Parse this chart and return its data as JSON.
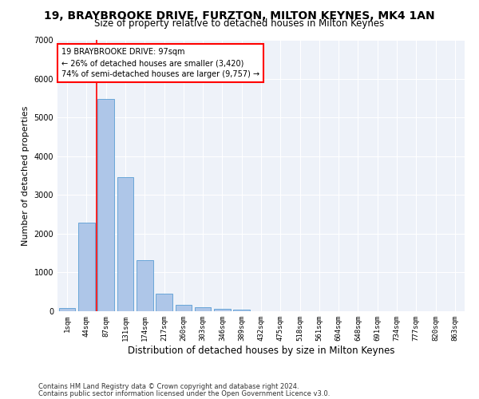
{
  "title": "19, BRAYBROOKE DRIVE, FURZTON, MILTON KEYNES, MK4 1AN",
  "subtitle": "Size of property relative to detached houses in Milton Keynes",
  "xlabel": "Distribution of detached houses by size in Milton Keynes",
  "ylabel": "Number of detached properties",
  "footnote1": "Contains HM Land Registry data © Crown copyright and database right 2024.",
  "footnote2": "Contains public sector information licensed under the Open Government Licence v3.0.",
  "bar_labels": [
    "1sqm",
    "44sqm",
    "87sqm",
    "131sqm",
    "174sqm",
    "217sqm",
    "260sqm",
    "303sqm",
    "346sqm",
    "389sqm",
    "432sqm",
    "475sqm",
    "518sqm",
    "561sqm",
    "604sqm",
    "648sqm",
    "691sqm",
    "734sqm",
    "777sqm",
    "820sqm",
    "863sqm"
  ],
  "bar_values": [
    75,
    2280,
    5480,
    3450,
    1310,
    460,
    170,
    110,
    70,
    45,
    0,
    0,
    0,
    0,
    0,
    0,
    0,
    0,
    0,
    0,
    0
  ],
  "bar_color": "#aec6e8",
  "bar_edge_color": "#5a9ed4",
  "vline_x": 2.0,
  "vline_color": "red",
  "annotation_text": "19 BRAYBROOKE DRIVE: 97sqm\n← 26% of detached houses are smaller (3,420)\n74% of semi-detached houses are larger (9,757) →",
  "annotation_box_color": "white",
  "annotation_box_edge": "red",
  "ylim": [
    0,
    7000
  ],
  "bg_color": "#eef2f9",
  "grid_color": "white",
  "title_fontsize": 10,
  "subtitle_fontsize": 8.5,
  "axis_label_fontsize": 8,
  "tick_fontsize": 6.5,
  "footnote_fontsize": 6
}
